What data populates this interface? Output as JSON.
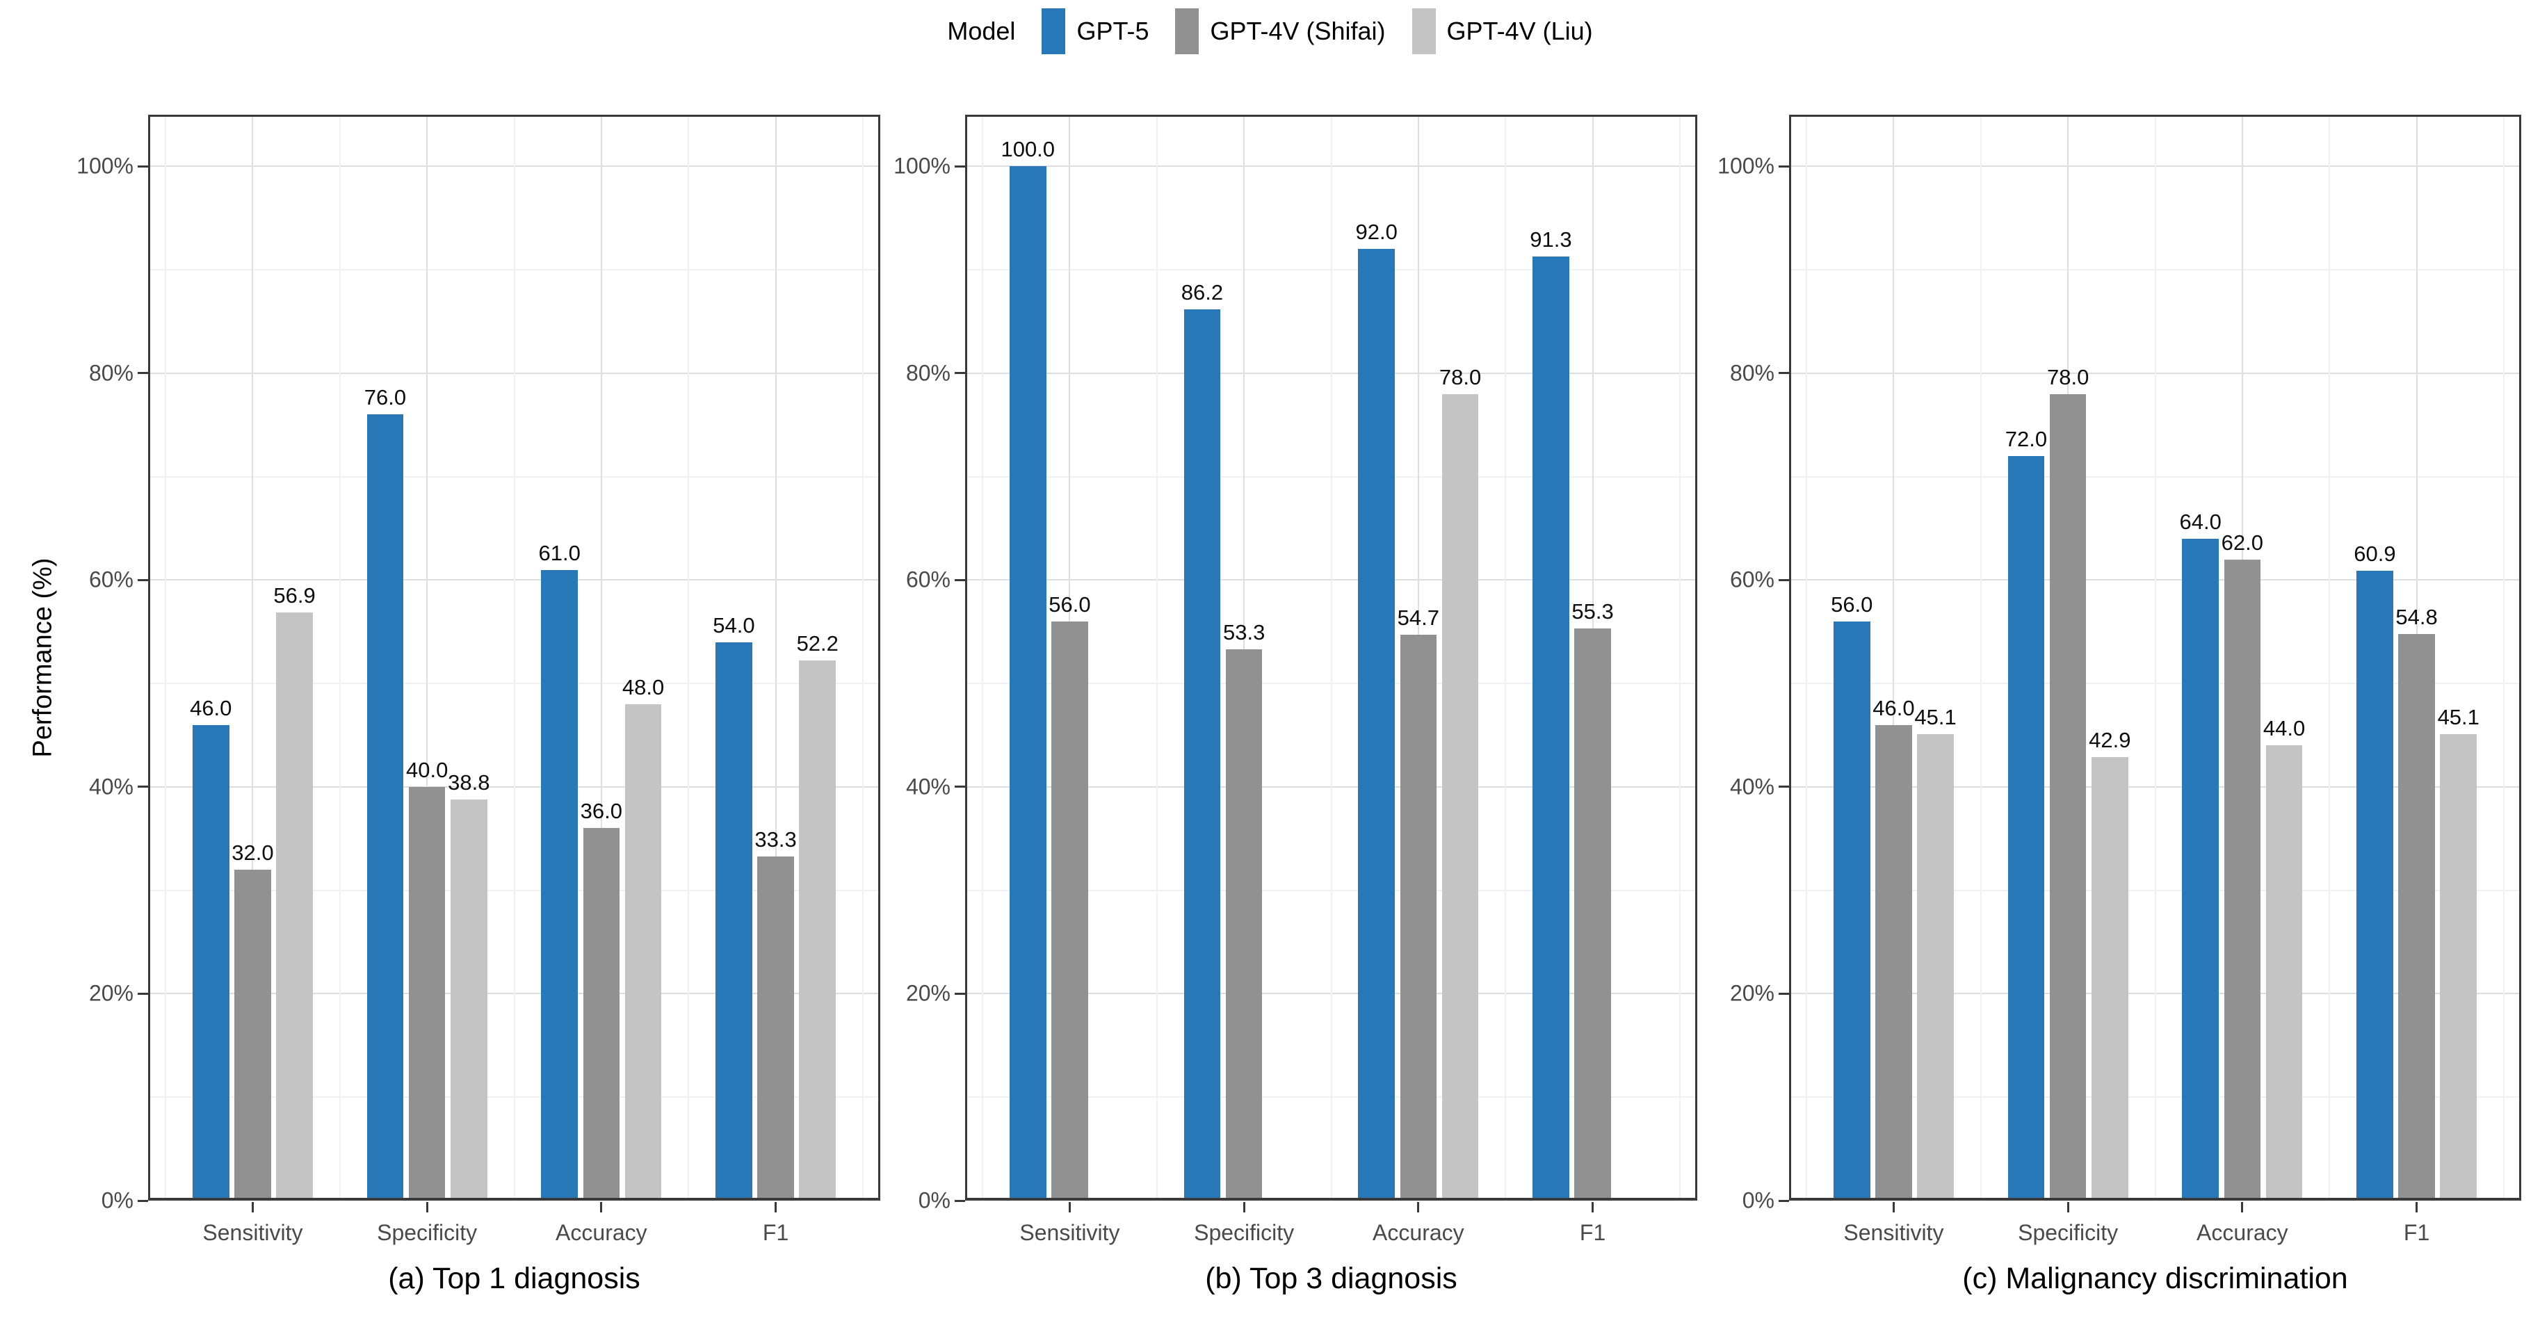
{
  "chart_data": {
    "type": "bar",
    "legend_title": "Model",
    "legend_position": "top",
    "series_names": [
      "GPT-5",
      "GPT-4V (Shifai)",
      "GPT-4V (Liu)"
    ],
    "colors": [
      "#2878B8",
      "#919191",
      "#C4C4C4"
    ],
    "categories": [
      "Sensitivity",
      "Specificity",
      "Accuracy",
      "F1"
    ],
    "ylabel": "Performance (%)",
    "ylim": [
      0,
      105
    ],
    "ytick_values": [
      0,
      20,
      40,
      60,
      80,
      100
    ],
    "ytick_labels": [
      "0%",
      "20%",
      "40%",
      "60%",
      "80%",
      "100%"
    ],
    "ytick_minor_values": [
      10,
      30,
      50,
      70,
      90
    ],
    "grid": "major and minor gridlines on, light gray",
    "panels": [
      {
        "caption": "(a) Top 1 diagnosis",
        "series": [
          {
            "name": "GPT-5",
            "values": [
              46.0,
              76.0,
              61.0,
              54.0
            ]
          },
          {
            "name": "GPT-4V (Shifai)",
            "values": [
              32.0,
              40.0,
              36.0,
              33.3
            ]
          },
          {
            "name": "GPT-4V (Liu)",
            "values": [
              56.9,
              38.8,
              48.0,
              52.2
            ]
          }
        ]
      },
      {
        "caption": "(b) Top 3 diagnosis",
        "series": [
          {
            "name": "GPT-5",
            "values": [
              100.0,
              86.2,
              92.0,
              91.3
            ]
          },
          {
            "name": "GPT-4V (Shifai)",
            "values": [
              56.0,
              53.3,
              54.7,
              55.3
            ]
          },
          {
            "name": "GPT-4V (Liu)",
            "values": [
              null,
              null,
              78.0,
              null
            ]
          }
        ]
      },
      {
        "caption": "(c) Malignancy discrimination",
        "series": [
          {
            "name": "GPT-5",
            "values": [
              56.0,
              72.0,
              64.0,
              60.9
            ]
          },
          {
            "name": "GPT-4V (Shifai)",
            "values": [
              46.0,
              78.0,
              62.0,
              54.8
            ]
          },
          {
            "name": "GPT-4V (Liu)",
            "values": [
              45.1,
              42.9,
              44.0,
              45.1
            ]
          }
        ]
      }
    ]
  }
}
